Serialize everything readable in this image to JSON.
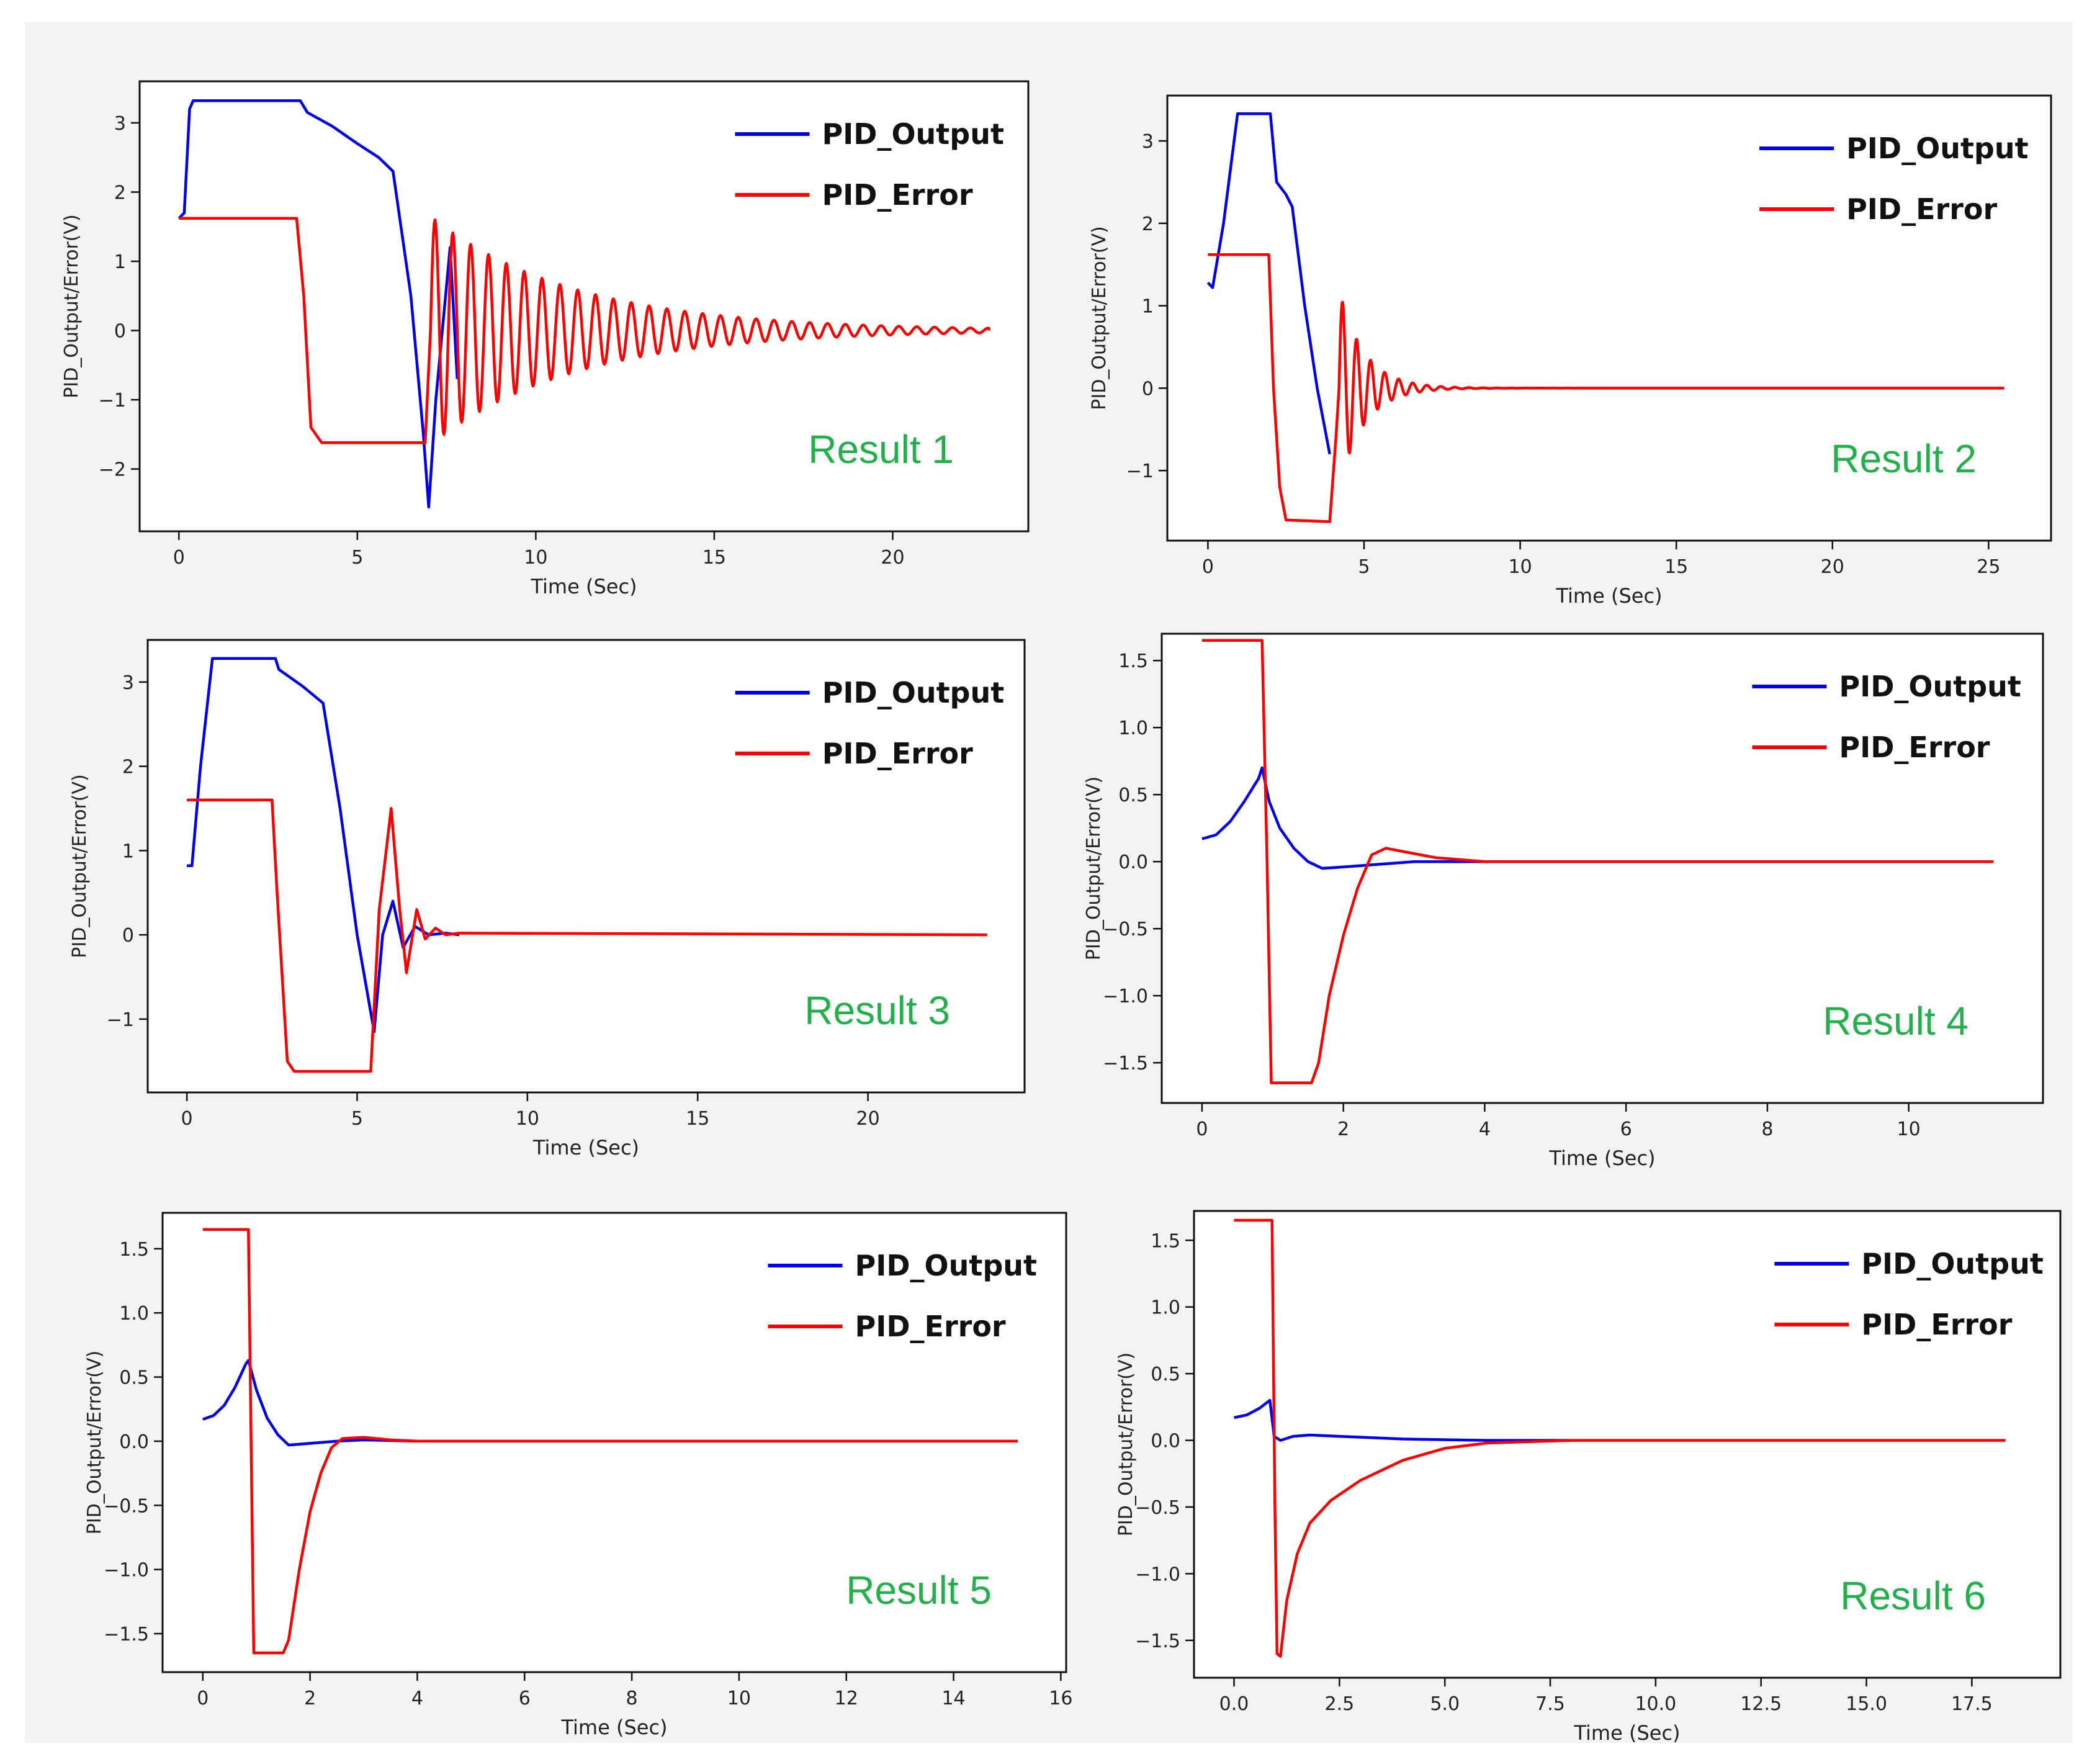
{
  "colors": {
    "output": "#0000ee",
    "error": "#ff0000",
    "annotation": "#22b04a",
    "panel": "#f3f3f3"
  },
  "chart_data": [
    {
      "type": "line",
      "title": "",
      "annotation": "Result 1",
      "xlabel": "Time (Sec)",
      "ylabel": "PID_Output/Error(V)",
      "xlim": [
        -1.1,
        23.8
      ],
      "ylim": [
        -2.9,
        3.6
      ],
      "xticks": [
        0,
        5,
        10,
        15,
        20
      ],
      "yticks": [
        3,
        2,
        1,
        0,
        -1,
        -2
      ],
      "xtick_labels": [
        "0",
        "5",
        "10",
        "15",
        "20"
      ],
      "ytick_labels": [
        "3",
        "2",
        "1",
        "0",
        "−1",
        "−2"
      ],
      "legend": [
        "PID_Output",
        "PID_Error"
      ],
      "legend_loc": "upper right",
      "series": [
        {
          "name": "PID_Output",
          "points": [
            [
              0,
              1.62
            ],
            [
              0.15,
              1.7
            ],
            [
              0.3,
              3.2
            ],
            [
              0.4,
              3.32
            ],
            [
              3.4,
              3.32
            ],
            [
              3.6,
              3.15
            ],
            [
              4.3,
              2.95
            ],
            [
              5.0,
              2.7
            ],
            [
              5.6,
              2.5
            ],
            [
              6.0,
              2.3
            ],
            [
              6.5,
              0.5
            ],
            [
              6.85,
              -1.5
            ],
            [
              7.0,
              -2.55
            ],
            [
              7.2,
              -1.0
            ],
            [
              7.6,
              1.2
            ],
            [
              7.8,
              -0.7
            ]
          ]
        },
        {
          "name": "PID_Error",
          "damped": {
            "t0": 7.05,
            "period": 0.5,
            "amp": 1.65,
            "tau": 4.0,
            "tmax": 22.7
          },
          "points": [
            [
              0,
              1.62
            ],
            [
              3.3,
              1.62
            ],
            [
              3.5,
              0.5
            ],
            [
              3.7,
              -1.4
            ],
            [
              4.0,
              -1.62
            ],
            [
              6.9,
              -1.62
            ]
          ]
        }
      ]
    },
    {
      "type": "line",
      "title": "",
      "annotation": "Result 2",
      "xlabel": "Time (Sec)",
      "ylabel": "PID_Output/Error(V)",
      "xlim": [
        -1.3,
        27.0
      ],
      "ylim": [
        -1.85,
        3.55
      ],
      "xticks": [
        0,
        5,
        10,
        15,
        20,
        25
      ],
      "yticks": [
        3,
        2,
        1,
        0,
        -1
      ],
      "xtick_labels": [
        "0",
        "5",
        "10",
        "15",
        "20",
        "25"
      ],
      "ytick_labels": [
        "3",
        "2",
        "1",
        "0",
        "−1"
      ],
      "legend": [
        "PID_Output",
        "PID_Error"
      ],
      "legend_loc": "upper right",
      "series": [
        {
          "name": "PID_Output",
          "points": [
            [
              0,
              1.28
            ],
            [
              0.15,
              1.22
            ],
            [
              0.5,
              2.0
            ],
            [
              0.95,
              3.33
            ],
            [
              2.0,
              3.33
            ],
            [
              2.2,
              2.5
            ],
            [
              2.5,
              2.35
            ],
            [
              2.7,
              2.2
            ],
            [
              3.1,
              1.0
            ],
            [
              3.5,
              0.0
            ],
            [
              3.9,
              -0.8
            ]
          ]
        },
        {
          "name": "PID_Error",
          "damped": {
            "t0": 4.2,
            "period": 0.45,
            "amp": 1.2,
            "tau": 0.8,
            "tmax": 25.5
          },
          "points": [
            [
              0,
              1.62
            ],
            [
              1.95,
              1.62
            ],
            [
              2.1,
              0.0
            ],
            [
              2.3,
              -1.2
            ],
            [
              2.5,
              -1.6
            ],
            [
              3.9,
              -1.62
            ],
            [
              4.1,
              -0.6
            ]
          ]
        }
      ]
    },
    {
      "type": "line",
      "title": "",
      "annotation": "Result 3",
      "xlabel": "Time (Sec)",
      "ylabel": "PID_Output/Error(V)",
      "xlim": [
        -1.15,
        24.6
      ],
      "ylim": [
        -1.87,
        3.5
      ],
      "xticks": [
        0,
        5,
        10,
        15,
        20
      ],
      "yticks": [
        3,
        2,
        1,
        0,
        -1
      ],
      "xtick_labels": [
        "0",
        "5",
        "10",
        "15",
        "20"
      ],
      "ytick_labels": [
        "3",
        "2",
        "1",
        "0",
        "−1"
      ],
      "legend": [
        "PID_Output",
        "PID_Error"
      ],
      "legend_loc": "upper right",
      "series": [
        {
          "name": "PID_Output",
          "points": [
            [
              0,
              0.82
            ],
            [
              0.15,
              0.82
            ],
            [
              0.4,
              2.0
            ],
            [
              0.75,
              3.28
            ],
            [
              2.6,
              3.28
            ],
            [
              2.7,
              3.15
            ],
            [
              3.4,
              2.95
            ],
            [
              4.0,
              2.75
            ],
            [
              4.5,
              1.5
            ],
            [
              5.0,
              0.0
            ],
            [
              5.5,
              -1.15
            ],
            [
              5.75,
              0.0
            ],
            [
              6.05,
              0.4
            ],
            [
              6.35,
              -0.15
            ],
            [
              6.7,
              0.1
            ],
            [
              7.1,
              0.0
            ],
            [
              7.6,
              0.02
            ],
            [
              8.0,
              0.0
            ]
          ]
        },
        {
          "name": "PID_Error",
          "points": [
            [
              0,
              1.6
            ],
            [
              2.5,
              1.6
            ],
            [
              2.65,
              0.5
            ],
            [
              2.95,
              -1.5
            ],
            [
              3.15,
              -1.62
            ],
            [
              5.4,
              -1.62
            ],
            [
              5.65,
              0.3
            ],
            [
              6.0,
              1.5
            ],
            [
              6.25,
              0.3
            ],
            [
              6.45,
              -0.45
            ],
            [
              6.75,
              0.3
            ],
            [
              7.0,
              -0.05
            ],
            [
              7.3,
              0.08
            ],
            [
              7.6,
              0.0
            ],
            [
              8.0,
              0.02
            ],
            [
              23.5,
              0.0
            ]
          ]
        }
      ]
    },
    {
      "type": "line",
      "title": "",
      "annotation": "Result 4",
      "xlabel": "Time (Sec)",
      "ylabel": "PID_Output/Error(V)",
      "xlim": [
        -0.57,
        11.9
      ],
      "ylim": [
        -1.8,
        1.7
      ],
      "xticks": [
        0,
        2,
        4,
        6,
        8,
        10
      ],
      "yticks": [
        1.5,
        1.0,
        0.5,
        0.0,
        -0.5,
        -1.0,
        -1.5
      ],
      "xtick_labels": [
        "0",
        "2",
        "4",
        "6",
        "8",
        "10"
      ],
      "ytick_labels": [
        "1.5",
        "1.0",
        "0.5",
        "0.0",
        "−0.5",
        "−1.0",
        "−1.5"
      ],
      "legend": [
        "PID_Output",
        "PID_Error"
      ],
      "legend_loc": "upper right",
      "series": [
        {
          "name": "PID_Output",
          "points": [
            [
              0,
              0.17
            ],
            [
              0.2,
              0.2
            ],
            [
              0.4,
              0.3
            ],
            [
              0.6,
              0.45
            ],
            [
              0.8,
              0.62
            ],
            [
              0.85,
              0.7
            ],
            [
              0.95,
              0.45
            ],
            [
              1.1,
              0.25
            ],
            [
              1.3,
              0.1
            ],
            [
              1.5,
              0.0
            ],
            [
              1.7,
              -0.05
            ],
            [
              2.0,
              -0.04
            ],
            [
              2.5,
              -0.02
            ],
            [
              3.0,
              0.0
            ],
            [
              4.0,
              0.0
            ]
          ]
        },
        {
          "name": "PID_Error",
          "points": [
            [
              0,
              1.65
            ],
            [
              0.85,
              1.65
            ],
            [
              0.92,
              0.0
            ],
            [
              0.98,
              -1.65
            ],
            [
              1.55,
              -1.65
            ],
            [
              1.65,
              -1.5
            ],
            [
              1.8,
              -1.0
            ],
            [
              2.0,
              -0.55
            ],
            [
              2.2,
              -0.2
            ],
            [
              2.4,
              0.05
            ],
            [
              2.6,
              0.1
            ],
            [
              2.9,
              0.07
            ],
            [
              3.3,
              0.03
            ],
            [
              4.0,
              0.0
            ],
            [
              11.2,
              0.0
            ]
          ]
        }
      ]
    },
    {
      "type": "line",
      "title": "",
      "annotation": "Result 5",
      "xlabel": "Time (Sec)",
      "ylabel": "PID_Output/Error(V)",
      "xlim": [
        -0.75,
        16.1
      ],
      "ylim": [
        -1.8,
        1.78
      ],
      "xticks": [
        0,
        2,
        4,
        6,
        8,
        10,
        12,
        14,
        16
      ],
      "yticks": [
        1.5,
        1.0,
        0.5,
        0.0,
        -0.5,
        -1.0,
        -1.5
      ],
      "xtick_labels": [
        "0",
        "2",
        "4",
        "6",
        "8",
        "10",
        "12",
        "14",
        "16"
      ],
      "ytick_labels": [
        "1.5",
        "1.0",
        "0.5",
        "0.0",
        "−0.5",
        "−1.0",
        "−1.5"
      ],
      "legend": [
        "PID_Output",
        "PID_Error"
      ],
      "legend_loc": "upper right",
      "series": [
        {
          "name": "PID_Output",
          "points": [
            [
              0,
              0.17
            ],
            [
              0.2,
              0.2
            ],
            [
              0.4,
              0.28
            ],
            [
              0.6,
              0.42
            ],
            [
              0.8,
              0.6
            ],
            [
              0.85,
              0.63
            ],
            [
              1.0,
              0.4
            ],
            [
              1.2,
              0.18
            ],
            [
              1.4,
              0.05
            ],
            [
              1.6,
              -0.03
            ],
            [
              1.9,
              -0.02
            ],
            [
              2.5,
              0.0
            ],
            [
              3.0,
              0.01
            ],
            [
              4.0,
              0.0
            ]
          ]
        },
        {
          "name": "PID_Error",
          "points": [
            [
              0,
              1.65
            ],
            [
              0.85,
              1.65
            ],
            [
              0.9,
              0.0
            ],
            [
              0.95,
              -1.65
            ],
            [
              1.5,
              -1.65
            ],
            [
              1.6,
              -1.55
            ],
            [
              1.8,
              -1.0
            ],
            [
              2.0,
              -0.55
            ],
            [
              2.2,
              -0.25
            ],
            [
              2.4,
              -0.05
            ],
            [
              2.6,
              0.02
            ],
            [
              3.0,
              0.03
            ],
            [
              3.5,
              0.01
            ],
            [
              4.0,
              0.0
            ],
            [
              15.2,
              0.0
            ]
          ]
        }
      ]
    },
    {
      "type": "line",
      "title": "",
      "annotation": "Result 6",
      "xlabel": "Time (Sec)",
      "ylabel": "PID_Output/Error(V)",
      "xlim": [
        -0.95,
        19.6
      ],
      "ylim": [
        -1.78,
        1.72
      ],
      "xticks": [
        0,
        2.5,
        5.0,
        7.5,
        10.0,
        12.5,
        15.0,
        17.5
      ],
      "yticks": [
        1.5,
        1.0,
        0.5,
        0.0,
        -0.5,
        -1.0,
        -1.5
      ],
      "xtick_labels": [
        "0.0",
        "2.5",
        "5.0",
        "7.5",
        "10.0",
        "12.5",
        "15.0",
        "17.5"
      ],
      "ytick_labels": [
        "1.5",
        "1.0",
        "0.5",
        "0.0",
        "−0.5",
        "−1.0",
        "−1.5"
      ],
      "legend": [
        "PID_Output",
        "PID_Error"
      ],
      "legend_loc": "upper right",
      "series": [
        {
          "name": "PID_Output",
          "points": [
            [
              0,
              0.17
            ],
            [
              0.3,
              0.19
            ],
            [
              0.6,
              0.24
            ],
            [
              0.85,
              0.3
            ],
            [
              0.95,
              0.03
            ],
            [
              1.1,
              0.0
            ],
            [
              1.4,
              0.03
            ],
            [
              1.8,
              0.04
            ],
            [
              2.5,
              0.03
            ],
            [
              4.0,
              0.01
            ],
            [
              6.0,
              0.0
            ],
            [
              8.0,
              0.0
            ]
          ]
        },
        {
          "name": "PID_Error",
          "points": [
            [
              0,
              1.65
            ],
            [
              0.9,
              1.65
            ],
            [
              0.97,
              -0.5
            ],
            [
              1.02,
              -1.6
            ],
            [
              1.1,
              -1.62
            ],
            [
              1.25,
              -1.2
            ],
            [
              1.5,
              -0.85
            ],
            [
              1.8,
              -0.62
            ],
            [
              2.3,
              -0.45
            ],
            [
              3.0,
              -0.3
            ],
            [
              4.0,
              -0.15
            ],
            [
              5.0,
              -0.06
            ],
            [
              6.0,
              -0.02
            ],
            [
              8.0,
              0.0
            ],
            [
              18.3,
              0.0
            ]
          ]
        }
      ]
    }
  ]
}
